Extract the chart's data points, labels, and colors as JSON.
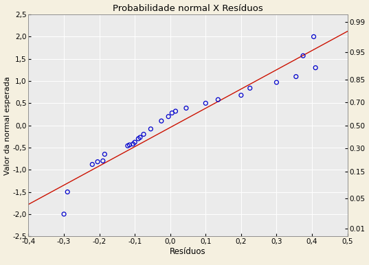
{
  "title": "Probabilidade normal X Resíduos",
  "xlabel": "Resíduos",
  "ylabel": "Valor da normal esperada",
  "xlim": [
    -0.4,
    0.5
  ],
  "ylim": [
    -2.5,
    2.5
  ],
  "xticks": [
    -0.4,
    -0.3,
    -0.2,
    -0.1,
    0.0,
    0.1,
    0.2,
    0.3,
    0.4,
    0.5
  ],
  "yticks": [
    -2.5,
    -2.0,
    -1.5,
    -1.0,
    -0.5,
    0.0,
    0.5,
    1.0,
    1.5,
    2.0,
    2.5
  ],
  "ytick_labels": [
    "-2,5",
    "-2,0",
    "-1,5",
    "-1,0",
    "-0,5",
    "0,0",
    "0,5",
    "1,0",
    "1,5",
    "2,0",
    "2,5"
  ],
  "xtick_labels": [
    "-0,4",
    "-0,3",
    "-0,2",
    "-0,1",
    "0,0",
    "0,1",
    "0,2",
    "0,3",
    "0,4",
    "0,5"
  ],
  "right_ytick_labels": [
    "0.99",
    "0.95",
    "0.85",
    "0.70",
    "0.50",
    "0.30",
    "0.15",
    "0.05",
    "0.01"
  ],
  "right_ytick_positions": [
    2.326,
    1.645,
    1.036,
    0.524,
    0.0,
    -0.524,
    -1.036,
    -1.645,
    -2.326
  ],
  "scatter_x": [
    -0.3,
    -0.29,
    -0.22,
    -0.205,
    -0.19,
    -0.185,
    -0.12,
    -0.115,
    -0.105,
    -0.1,
    -0.09,
    -0.085,
    -0.075,
    -0.055,
    -0.025,
    -0.005,
    0.005,
    0.015,
    0.045,
    0.1,
    0.135,
    0.2,
    0.225,
    0.3,
    0.355,
    0.375,
    0.405,
    0.41
  ],
  "scatter_y": [
    -2.0,
    -1.5,
    -0.88,
    -0.82,
    -0.8,
    -0.65,
    -0.46,
    -0.44,
    -0.42,
    -0.38,
    -0.3,
    -0.27,
    -0.2,
    -0.08,
    0.1,
    0.2,
    0.28,
    0.32,
    0.39,
    0.5,
    0.58,
    0.68,
    0.84,
    0.97,
    1.1,
    1.57,
    2.0,
    1.3
  ],
  "line_color": "#cc1100",
  "scatter_color": "#0000cc",
  "background_color": "#f5f0e0",
  "plot_bg_color": "#ebebeb",
  "grid_color": "#ffffff",
  "line_x": [
    -0.4,
    0.5
  ],
  "line_y": [
    -1.78,
    2.12
  ]
}
